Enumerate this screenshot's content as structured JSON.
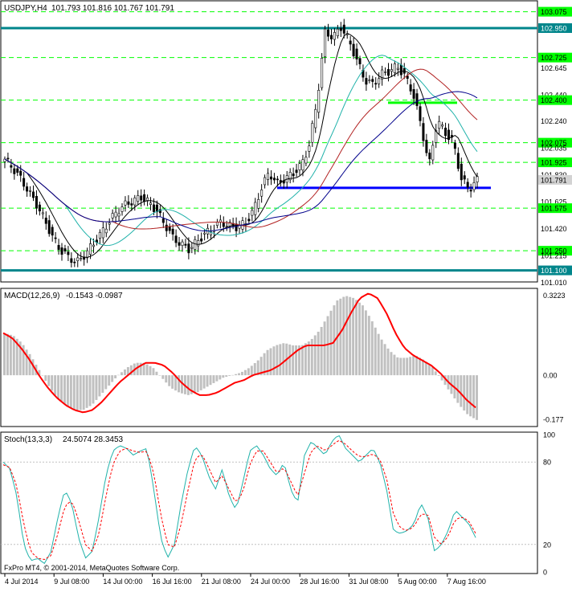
{
  "header": {
    "symbol_tf": "USDJPY,H4",
    "ohlc": "101.793 101.816 101.767 101.791"
  },
  "macd": {
    "label": "MACD(12,26,9)",
    "values": "-0.1543 -0.0987"
  },
  "stoch": {
    "label": "Stoch(13,3,3)",
    "values": "24.5074 28.3453"
  },
  "copyright": "FxPro MT4, © 2001-2014, MetaQuotes Software Corp.",
  "colors": {
    "price_axis_bg": "#00868b",
    "support_line": "#0000ff",
    "green_level": "#00ff00",
    "macd_signal": "#ff0000",
    "macd_hist": "#c0c0c0",
    "stoch_main": "#20b2aa",
    "stoch_signal": "#ff0000",
    "ma_blue": "#00008b",
    "ma_red": "#b22222",
    "ma_teal": "#20b2aa",
    "ma_black": "#000000"
  },
  "chart_data": [
    {
      "type": "candlestick",
      "title": "USDJPY,H4",
      "ylim": [
        101.03,
        103.14
      ],
      "price_ticks": [
        "103.075",
        "102.950",
        "102.725",
        "102.645",
        "102.440",
        "102.400",
        "102.240",
        "102.075",
        "102.035",
        "101.925",
        "101.830",
        "101.791",
        "101.625",
        "101.575",
        "101.420",
        "101.250",
        "101.215",
        "101.100",
        "101.010"
      ],
      "horizontal_levels": [
        {
          "value": 102.95,
          "style": "teal-thick"
        },
        {
          "value": 101.1,
          "style": "teal-thick"
        },
        {
          "value": 101.73,
          "style": "blue-thick"
        },
        {
          "value": 102.38,
          "style": "green-thick"
        },
        {
          "value": 103.075,
          "style": "green-dashed"
        },
        {
          "value": 102.725,
          "style": "green-dashed"
        },
        {
          "value": 102.4,
          "style": "green-dashed"
        },
        {
          "value": 102.075,
          "style": "green-dashed"
        },
        {
          "value": 101.925,
          "style": "green-dashed"
        },
        {
          "value": 101.575,
          "style": "green-dashed"
        },
        {
          "value": 101.25,
          "style": "green-dashed"
        }
      ],
      "close_path": [
        101.95,
        101.88,
        101.8,
        101.7,
        101.6,
        101.48,
        101.35,
        101.25,
        101.2,
        101.16,
        101.22,
        101.3,
        101.38,
        101.47,
        101.55,
        101.6,
        101.63,
        101.66,
        101.62,
        101.55,
        101.45,
        101.35,
        101.3,
        101.26,
        101.32,
        101.38,
        101.42,
        101.47,
        101.44,
        101.43,
        101.46,
        101.55,
        101.72,
        101.85,
        101.76,
        101.8,
        101.84,
        101.9,
        102.05,
        102.4,
        102.92,
        102.88,
        102.96,
        102.85,
        102.7,
        102.55,
        102.52,
        102.6,
        102.62,
        102.66,
        102.58,
        102.45,
        102.2,
        101.9,
        102.25,
        102.15,
        102.08,
        101.8,
        101.72,
        101.79
      ],
      "x_ticks": [
        "4 Jul 2014",
        "9 Jul 08:00",
        "14 Jul 00:00",
        "16 Jul 16:00",
        "21 Jul 08:00",
        "24 Jul 00:00",
        "28 Jul 16:00",
        "31 Jul 08:00",
        "5 Aug 00:00",
        "7 Aug 16:00"
      ]
    },
    {
      "type": "line",
      "title": "MACD(12,26,9)",
      "ylim": [
        -0.2,
        0.34
      ],
      "y_ticks": [
        "0.3223",
        "0.00",
        "-0.177"
      ],
      "histogram_path": [
        0.17,
        0.16,
        0.13,
        0.08,
        0.02,
        -0.04,
        -0.09,
        -0.12,
        -0.14,
        -0.14,
        -0.12,
        -0.08,
        -0.04,
        0.0,
        0.03,
        0.05,
        0.05,
        0.03,
        -0.01,
        -0.05,
        -0.07,
        -0.08,
        -0.07,
        -0.05,
        -0.03,
        -0.01,
        0.0,
        0.01,
        0.03,
        0.06,
        0.1,
        0.12,
        0.13,
        0.12,
        0.12,
        0.14,
        0.18,
        0.24,
        0.3,
        0.32,
        0.31,
        0.28,
        0.22,
        0.15,
        0.1,
        0.07,
        0.07,
        0.08,
        0.06,
        0.03,
        -0.02,
        -0.07,
        -0.12,
        -0.16,
        -0.18
      ],
      "signal_path": [
        0.17,
        0.15,
        0.11,
        0.06,
        0.0,
        -0.05,
        -0.09,
        -0.12,
        -0.14,
        -0.15,
        -0.14,
        -0.11,
        -0.07,
        -0.03,
        0.0,
        0.03,
        0.05,
        0.05,
        0.04,
        0.01,
        -0.03,
        -0.06,
        -0.08,
        -0.08,
        -0.07,
        -0.05,
        -0.03,
        -0.02,
        0.0,
        0.01,
        0.02,
        0.04,
        0.07,
        0.1,
        0.12,
        0.12,
        0.12,
        0.13,
        0.18,
        0.25,
        0.31,
        0.33,
        0.31,
        0.25,
        0.17,
        0.11,
        0.08,
        0.06,
        0.04,
        0.01,
        -0.03,
        -0.06,
        -0.1,
        -0.13
      ]
    },
    {
      "type": "line",
      "title": "Stoch(13,3,3)",
      "ylim": [
        0,
        100
      ],
      "y_ticks": [
        "100",
        "80",
        "20",
        "0"
      ],
      "main_path": [
        80,
        75,
        55,
        20,
        8,
        10,
        6,
        15,
        40,
        60,
        50,
        25,
        10,
        15,
        40,
        70,
        88,
        92,
        90,
        85,
        88,
        90,
        60,
        25,
        10,
        20,
        50,
        75,
        92,
        85,
        70,
        60,
        75,
        55,
        45,
        65,
        88,
        92,
        85,
        75,
        70,
        80,
        60,
        50,
        85,
        95,
        90,
        85,
        95,
        100,
        90,
        85,
        80,
        85,
        90,
        80,
        60,
        30,
        28,
        30,
        35,
        50,
        40,
        15,
        20,
        30,
        45,
        40,
        35,
        25
      ],
      "signal_path": [
        78,
        76,
        62,
        35,
        15,
        10,
        9,
        12,
        28,
        48,
        52,
        38,
        20,
        15,
        28,
        55,
        78,
        88,
        90,
        88,
        87,
        88,
        72,
        42,
        20,
        18,
        35,
        60,
        82,
        86,
        76,
        65,
        70,
        60,
        50,
        58,
        78,
        88,
        88,
        80,
        72,
        76,
        66,
        55,
        72,
        88,
        92,
        88,
        92,
        96,
        93,
        88,
        84,
        84,
        86,
        82,
        68,
        42,
        32,
        30,
        33,
        42,
        42,
        25,
        20,
        26,
        38,
        40,
        37,
        28
      ]
    }
  ]
}
